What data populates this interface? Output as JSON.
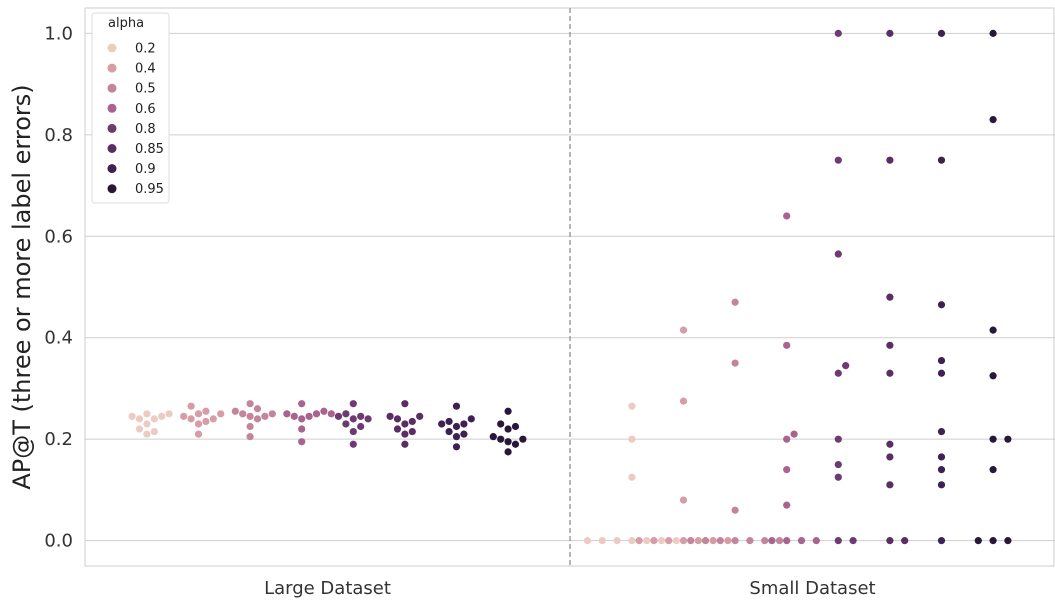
{
  "chart_data": {
    "type": "scatter",
    "subtype": "swarm",
    "categories": [
      "Large Dataset",
      "Small Dataset"
    ],
    "ylabel": "AP@T (three or more label errors)",
    "xlabel": "",
    "ylim": [
      -0.05,
      1.05
    ],
    "yticks": [
      "0.0",
      "0.2",
      "0.4",
      "0.6",
      "0.8",
      "1.0"
    ],
    "grid": "horizontal",
    "legend": {
      "title": "alpha",
      "placement": "top-left",
      "entries": [
        "0.2",
        "0.4",
        "0.5",
        "0.6",
        "0.8",
        "0.85",
        "0.9",
        "0.95"
      ]
    },
    "colors": [
      "#eccbc2",
      "#d79ca8",
      "#c3859c",
      "#a8638e",
      "#6e3a72",
      "#5a2e63",
      "#3d2150",
      "#271839"
    ],
    "series": [
      {
        "name": "0.2",
        "large": [
          0.25,
          0.24,
          0.245,
          0.23,
          0.22,
          0.215,
          0.21,
          0.245,
          0.24,
          0.25
        ],
        "small": [
          0.265,
          0.2,
          0.125,
          0,
          0,
          0,
          0,
          0,
          0,
          0
        ]
      },
      {
        "name": "0.4",
        "large": [
          0.265,
          0.255,
          0.25,
          0.245,
          0.24,
          0.235,
          0.23,
          0.21,
          0.24,
          0.25
        ],
        "small": [
          0.415,
          0.275,
          0.08,
          0,
          0,
          0,
          0,
          0,
          0,
          0
        ]
      },
      {
        "name": "0.5",
        "large": [
          0.27,
          0.26,
          0.255,
          0.25,
          0.245,
          0.245,
          0.24,
          0.225,
          0.205,
          0.25
        ],
        "small": [
          0.47,
          0.35,
          0.06,
          0,
          0,
          0,
          0,
          0,
          0,
          0
        ]
      },
      {
        "name": "0.6",
        "large": [
          0.27,
          0.255,
          0.25,
          0.25,
          0.245,
          0.245,
          0.24,
          0.22,
          0.195,
          0.25
        ],
        "small": [
          0.64,
          0.385,
          0.21,
          0.2,
          0.14,
          0.07,
          0,
          0,
          0,
          0
        ]
      },
      {
        "name": "0.8",
        "large": [
          0.27,
          0.25,
          0.245,
          0.24,
          0.24,
          0.23,
          0.225,
          0.215,
          0.19,
          0.245
        ],
        "small": [
          1.0,
          0.75,
          0.565,
          0.345,
          0.33,
          0.2,
          0.15,
          0.125,
          0,
          0
        ]
      },
      {
        "name": "0.85",
        "large": [
          0.27,
          0.245,
          0.24,
          0.235,
          0.23,
          0.22,
          0.215,
          0.21,
          0.19,
          0.245
        ],
        "small": [
          1.0,
          0.75,
          0.48,
          0.385,
          0.33,
          0.19,
          0.165,
          0.11,
          0,
          0
        ]
      },
      {
        "name": "0.9",
        "large": [
          0.265,
          0.24,
          0.235,
          0.23,
          0.225,
          0.215,
          0.21,
          0.205,
          0.185,
          0.23
        ],
        "small": [
          1.0,
          0.75,
          0.465,
          0.355,
          0.33,
          0.215,
          0.165,
          0.14,
          0.11,
          0
        ]
      },
      {
        "name": "0.95",
        "large": [
          0.255,
          0.23,
          0.225,
          0.22,
          0.205,
          0.2,
          0.195,
          0.19,
          0.175,
          0.2
        ],
        "small": [
          1.0,
          0.83,
          0.415,
          0.325,
          0.2,
          0.2,
          0.14,
          0,
          0,
          0
        ]
      }
    ]
  }
}
